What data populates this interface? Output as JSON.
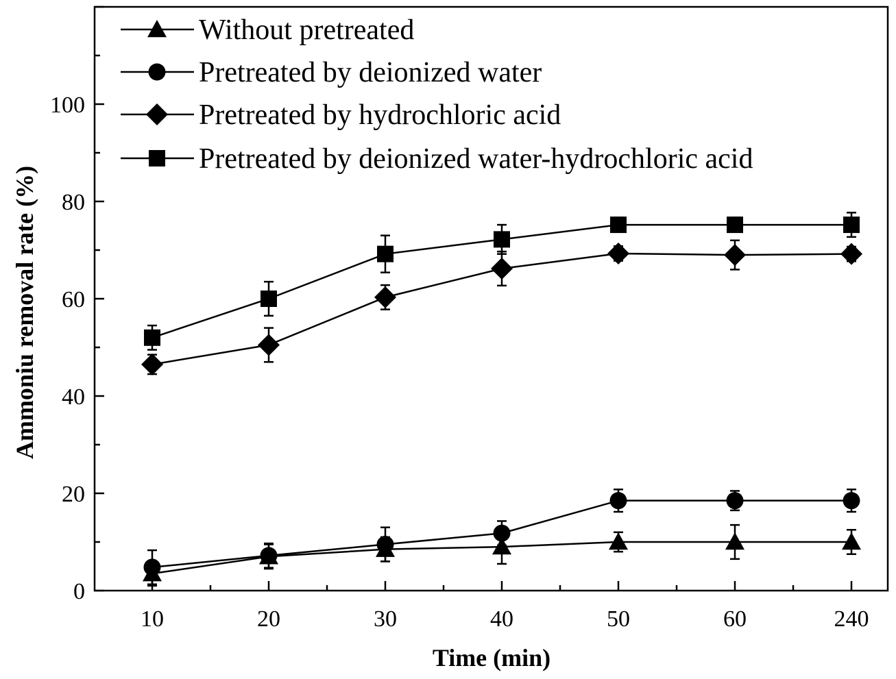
{
  "chart_data": {
    "type": "line",
    "title": "",
    "xlabel": "Time (min)",
    "ylabel": "Ammoniu removal rate (%)",
    "categories": [
      "10",
      "20",
      "30",
      "40",
      "50",
      "60",
      "240"
    ],
    "ylim": [
      0,
      120
    ],
    "yticks": [
      "0",
      "20",
      "40",
      "60",
      "80",
      "100"
    ],
    "grid": false,
    "legend_position": "top-left",
    "series": [
      {
        "name": "Without pretreated",
        "marker": "triangle",
        "values": [
          3.5,
          7,
          8.5,
          9,
          10,
          10,
          10
        ],
        "errors": [
          2.5,
          2.5,
          2.5,
          3.5,
          2,
          3.5,
          2.5
        ]
      },
      {
        "name": "Pretreated by deionized water",
        "marker": "circle",
        "values": [
          4.8,
          7.2,
          9.5,
          11.8,
          18.5,
          18.5,
          18.5
        ],
        "errors": [
          3.5,
          2.5,
          3.5,
          2.5,
          2.3,
          2,
          2.3
        ]
      },
      {
        "name": "Pretreated by hydrochloric acid",
        "marker": "diamond",
        "values": [
          46.5,
          50.5,
          60.3,
          66.2,
          69.3,
          69,
          69.2
        ],
        "errors": [
          2,
          3.5,
          2.5,
          3.5,
          1.5,
          3,
          1.5
        ]
      },
      {
        "name": "Pretreated by deionized water-hydrochloric acid",
        "marker": "square",
        "values": [
          52,
          60,
          69.2,
          72.2,
          75.2,
          75.2,
          75.2
        ],
        "errors": [
          2.5,
          3.5,
          3.8,
          3,
          1.5,
          1.5,
          2.5
        ]
      }
    ]
  }
}
